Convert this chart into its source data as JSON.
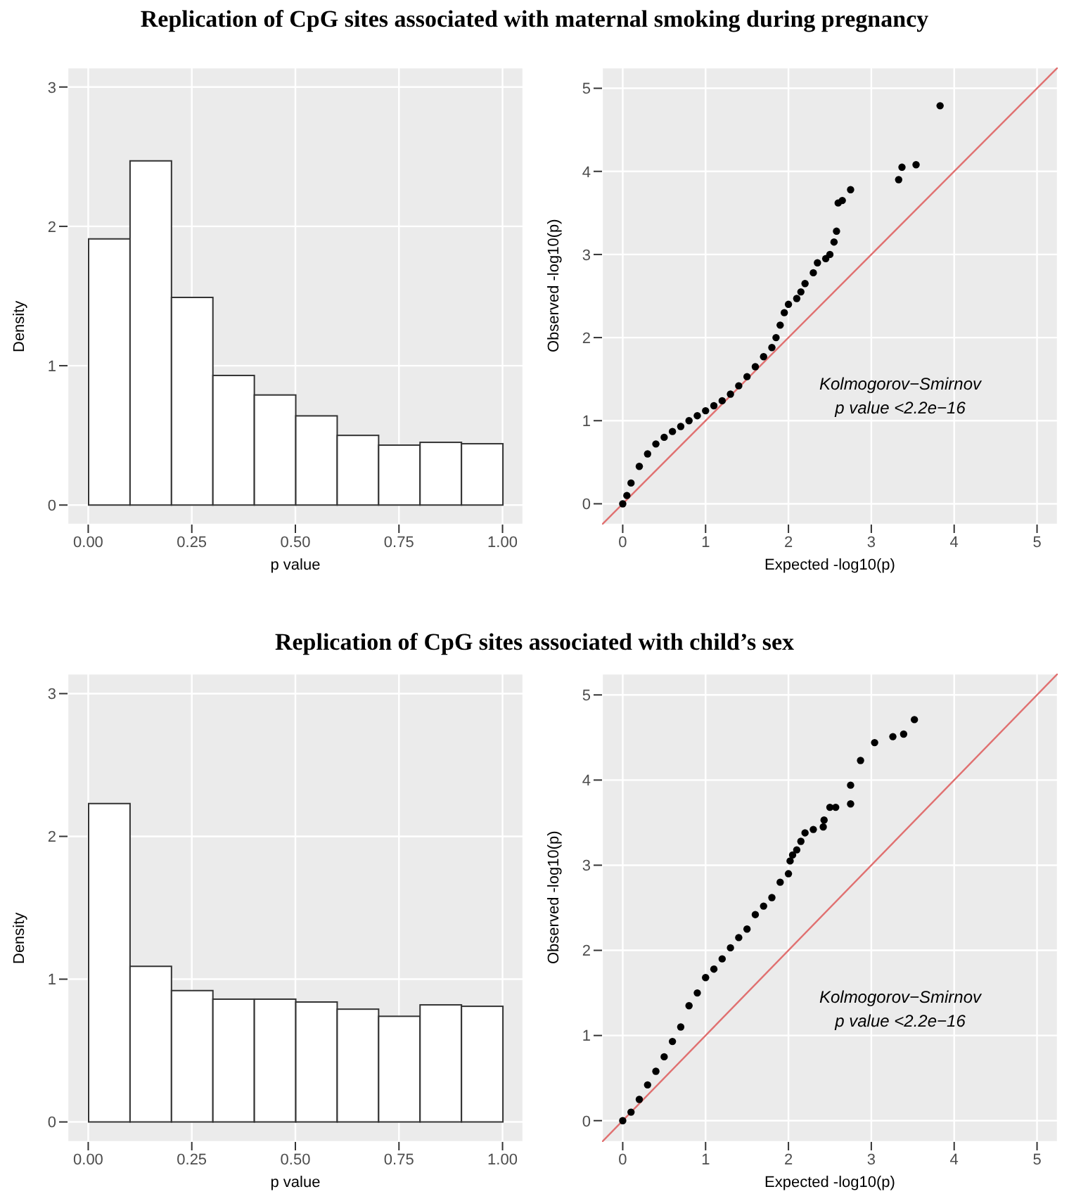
{
  "chart_data": [
    {
      "type": "histogram",
      "title": "Replication of CpG sites associated with maternal smoking during pregnancy",
      "xlabel": "p value",
      "ylabel": "Density",
      "bins": [
        0,
        0.1,
        0.2,
        0.3,
        0.4,
        0.5,
        0.6,
        0.7,
        0.8,
        0.9,
        1.0
      ],
      "values": [
        1.91,
        2.47,
        1.49,
        0.93,
        0.79,
        0.64,
        0.5,
        0.43,
        0.45,
        0.44
      ],
      "color": "#ffffff",
      "xlim": [
        -0.05,
        1.05
      ],
      "ylim": [
        -0.14,
        3.14
      ],
      "xticks": [
        {
          "value": 0,
          "label": "0.00"
        },
        {
          "value": 0.25,
          "label": "0.25"
        },
        {
          "value": 0.5,
          "label": "0.50"
        },
        {
          "value": 0.75,
          "label": "0.75"
        },
        {
          "value": 1,
          "label": "1.00"
        }
      ],
      "yticks": [
        0,
        1,
        2,
        3
      ],
      "grid": true
    },
    {
      "type": "scatter",
      "xlabel": "Expected -log10(p)",
      "ylabel": "Observed -log10(p)",
      "xlim": [
        -0.25,
        5.25
      ],
      "ylim": [
        -0.25,
        5.25
      ],
      "xticks": [
        0,
        1,
        2,
        3,
        4,
        5
      ],
      "yticks": [
        0,
        1,
        2,
        3,
        4,
        5
      ],
      "grid": true,
      "annotations": [
        "Kolmogorov−Smirnov",
        "p value <2.2e−16"
      ],
      "series": [
        {
          "type": "scatter",
          "marker": "circle",
          "color": "#000000",
          "x": [
            0,
            0.05,
            0.1,
            0.2,
            0.3,
            0.4,
            0.5,
            0.6,
            0.7,
            0.8,
            0.9,
            1.0,
            1.1,
            1.2,
            1.3,
            1.4,
            1.5,
            1.6,
            1.7,
            1.8,
            1.85,
            1.9,
            1.95,
            2.0,
            2.1,
            2.15,
            2.2,
            2.3,
            2.35,
            2.45,
            2.5,
            2.55,
            2.58,
            2.6,
            2.65,
            2.75,
            3.33,
            3.37,
            3.54,
            3.83
          ],
          "values": [
            0,
            0.1,
            0.25,
            0.45,
            0.6,
            0.72,
            0.8,
            0.87,
            0.93,
            1.0,
            1.06,
            1.12,
            1.18,
            1.24,
            1.32,
            1.42,
            1.53,
            1.65,
            1.77,
            1.88,
            2.0,
            2.15,
            2.3,
            2.4,
            2.47,
            2.55,
            2.65,
            2.78,
            2.9,
            2.95,
            3.0,
            3.15,
            3.28,
            3.62,
            3.65,
            3.78,
            3.9,
            4.05,
            4.08,
            4.79
          ]
        },
        {
          "type": "line",
          "color": "#e07070",
          "x": [
            -0.25,
            5.25
          ],
          "values": [
            -0.25,
            5.25
          ]
        }
      ]
    },
    {
      "type": "histogram",
      "title": "Replication of CpG sites associated with child’s sex",
      "xlabel": "p value",
      "ylabel": "Density",
      "bins": [
        0,
        0.1,
        0.2,
        0.3,
        0.4,
        0.5,
        0.6,
        0.7,
        0.8,
        0.9,
        1.0
      ],
      "values": [
        2.23,
        1.09,
        0.92,
        0.86,
        0.86,
        0.84,
        0.79,
        0.74,
        0.82,
        0.81
      ],
      "color": "#ffffff",
      "xlim": [
        -0.05,
        1.05
      ],
      "ylim": [
        -0.14,
        3.14
      ],
      "xticks": [
        {
          "value": 0,
          "label": "0.00"
        },
        {
          "value": 0.25,
          "label": "0.25"
        },
        {
          "value": 0.5,
          "label": "0.50"
        },
        {
          "value": 0.75,
          "label": "0.75"
        },
        {
          "value": 1,
          "label": "1.00"
        }
      ],
      "yticks": [
        0,
        1,
        2,
        3
      ],
      "grid": true
    },
    {
      "type": "scatter",
      "xlabel": "Expected -log10(p)",
      "ylabel": "Observed -log10(p)",
      "xlim": [
        -0.25,
        5.25
      ],
      "ylim": [
        -0.25,
        5.25
      ],
      "xticks": [
        0,
        1,
        2,
        3,
        4,
        5
      ],
      "yticks": [
        0,
        1,
        2,
        3,
        4,
        5
      ],
      "grid": true,
      "annotations": [
        "Kolmogorov−Smirnov",
        "p value <2.2e−16"
      ],
      "series": [
        {
          "type": "scatter",
          "marker": "circle",
          "color": "#000000",
          "x": [
            0,
            0.1,
            0.2,
            0.3,
            0.4,
            0.5,
            0.6,
            0.7,
            0.8,
            0.9,
            1.0,
            1.1,
            1.2,
            1.3,
            1.4,
            1.5,
            1.6,
            1.7,
            1.8,
            1.9,
            2.0,
            2.02,
            2.05,
            2.1,
            2.15,
            2.2,
            2.3,
            2.42,
            2.43,
            2.5,
            2.57,
            2.75,
            2.75,
            2.87,
            3.04,
            3.26,
            3.39,
            3.52
          ],
          "values": [
            0,
            0.1,
            0.25,
            0.42,
            0.58,
            0.75,
            0.93,
            1.1,
            1.35,
            1.5,
            1.68,
            1.78,
            1.9,
            2.03,
            2.15,
            2.25,
            2.42,
            2.52,
            2.62,
            2.8,
            2.9,
            3.05,
            3.12,
            3.18,
            3.28,
            3.38,
            3.42,
            3.45,
            3.53,
            3.68,
            3.68,
            3.72,
            3.94,
            4.23,
            4.44,
            4.51,
            4.54,
            4.71
          ]
        },
        {
          "type": "line",
          "color": "#e07070",
          "x": [
            -0.25,
            5.25
          ],
          "values": [
            -0.25,
            5.25
          ]
        }
      ]
    }
  ]
}
